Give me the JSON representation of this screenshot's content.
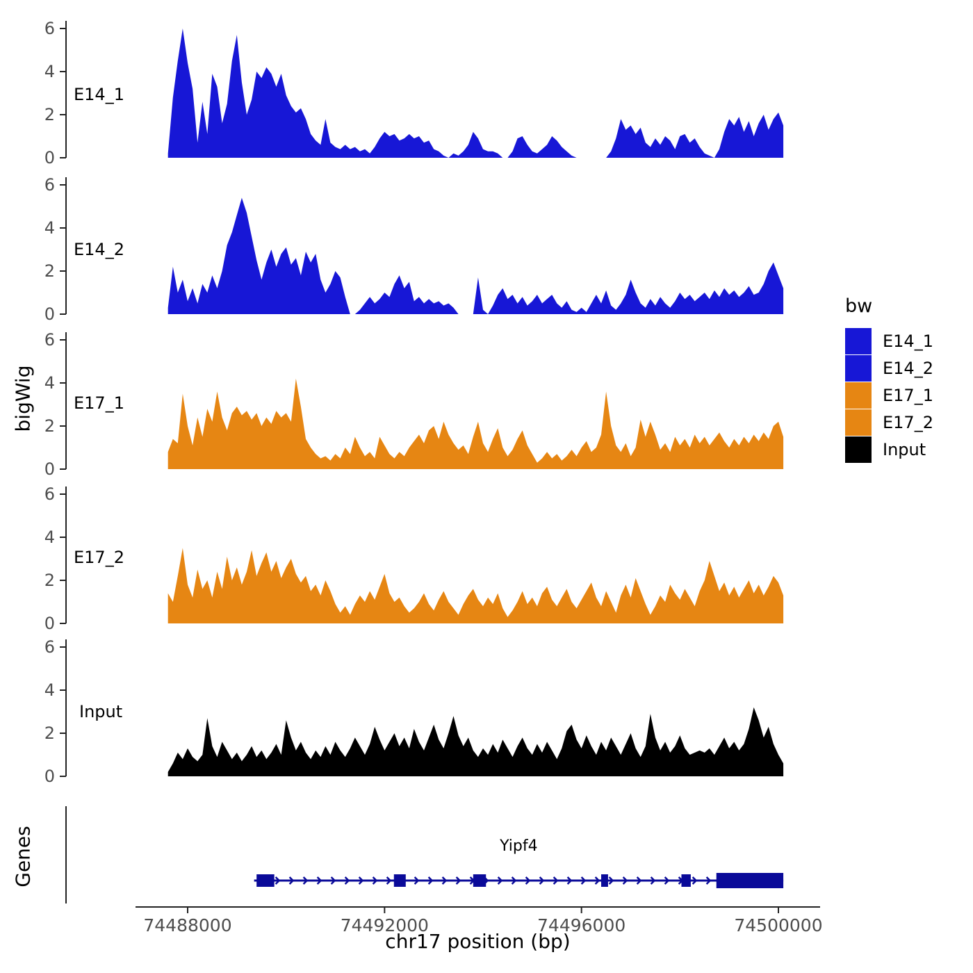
{
  "figure": {
    "ylab": "bigWig",
    "genes_lab": "Genes"
  },
  "legend": {
    "title": "bw",
    "items": [
      {
        "label": "E14_1",
        "color": "#1717d6"
      },
      {
        "label": "E14_2",
        "color": "#1717d6"
      },
      {
        "label": "E17_1",
        "color": "#e68613"
      },
      {
        "label": "E17_2",
        "color": "#e68613"
      },
      {
        "label": "Input",
        "color": "#000000"
      }
    ]
  },
  "chart_data": {
    "type": "area",
    "title": "",
    "xlabel": "chr17 position (bp)",
    "ylabel": "bigWig",
    "layout": "faceted-tracks",
    "x_axis": {
      "min": 74487600,
      "max": 74500100,
      "ticks": [
        74488000,
        74492000,
        74496000,
        74500000
      ],
      "tick_labels": [
        "74488000",
        "74492000",
        "74496000",
        "74500000"
      ]
    },
    "y_axis": {
      "min": 0,
      "max": 6,
      "ticks": [
        0,
        2,
        4,
        6
      ]
    },
    "x_start": 74487600,
    "x_step": 100,
    "series": [
      {
        "name": "E14_1",
        "color": "#1717d6",
        "values": [
          0.2,
          2.8,
          4.5,
          6.0,
          4.4,
          3.2,
          0.7,
          2.6,
          1.1,
          3.9,
          3.3,
          1.6,
          2.5,
          4.5,
          5.7,
          3.5,
          2.0,
          2.7,
          4.0,
          3.7,
          4.2,
          3.9,
          3.3,
          3.9,
          2.9,
          2.4,
          2.1,
          2.3,
          1.8,
          1.1,
          0.8,
          0.6,
          1.8,
          0.7,
          0.5,
          0.4,
          0.6,
          0.4,
          0.5,
          0.3,
          0.4,
          0.2,
          0.5,
          0.9,
          1.2,
          1.0,
          1.1,
          0.8,
          0.9,
          1.1,
          0.9,
          1.0,
          0.7,
          0.8,
          0.4,
          0.3,
          0.1,
          0.0,
          0.2,
          0.1,
          0.3,
          0.6,
          1.2,
          0.9,
          0.4,
          0.3,
          0.3,
          0.2,
          0.0,
          0.0,
          0.3,
          0.9,
          1.0,
          0.6,
          0.3,
          0.2,
          0.4,
          0.6,
          1.0,
          0.8,
          0.5,
          0.3,
          0.1,
          0.0,
          0.0,
          0.0,
          0.0,
          0.0,
          0.0,
          0.0,
          0.3,
          0.9,
          1.8,
          1.3,
          1.5,
          1.1,
          1.4,
          0.7,
          0.5,
          0.9,
          0.6,
          1.0,
          0.8,
          0.4,
          1.0,
          1.1,
          0.7,
          0.9,
          0.5,
          0.2,
          0.1,
          0.0,
          0.4,
          1.2,
          1.8,
          1.5,
          1.9,
          1.2,
          1.7,
          1.0,
          1.6,
          2.0,
          1.3,
          1.8,
          2.1,
          1.5
        ]
      },
      {
        "name": "E14_2",
        "color": "#1717d6",
        "values": [
          0.3,
          2.2,
          1.0,
          1.6,
          0.6,
          1.2,
          0.5,
          1.4,
          1.0,
          1.8,
          1.2,
          2.0,
          3.2,
          3.8,
          4.6,
          5.4,
          4.7,
          3.6,
          2.5,
          1.6,
          2.4,
          3.0,
          2.2,
          2.8,
          3.1,
          2.3,
          2.6,
          1.8,
          2.9,
          2.4,
          2.8,
          1.6,
          1.0,
          1.4,
          2.0,
          1.7,
          0.8,
          0.0,
          0.0,
          0.2,
          0.5,
          0.8,
          0.5,
          0.7,
          1.0,
          0.8,
          1.4,
          1.8,
          1.2,
          1.5,
          0.6,
          0.8,
          0.5,
          0.7,
          0.5,
          0.6,
          0.4,
          0.5,
          0.3,
          0.0,
          0.0,
          0.0,
          0.0,
          1.7,
          0.2,
          0.0,
          0.4,
          0.9,
          1.2,
          0.7,
          0.9,
          0.5,
          0.8,
          0.4,
          0.6,
          0.9,
          0.5,
          0.7,
          0.9,
          0.5,
          0.3,
          0.6,
          0.2,
          0.1,
          0.3,
          0.1,
          0.5,
          0.9,
          0.5,
          1.1,
          0.4,
          0.2,
          0.5,
          0.9,
          1.6,
          1.0,
          0.5,
          0.3,
          0.7,
          0.4,
          0.8,
          0.5,
          0.3,
          0.6,
          1.0,
          0.7,
          0.9,
          0.6,
          0.8,
          1.0,
          0.7,
          1.1,
          0.8,
          1.2,
          0.9,
          1.1,
          0.8,
          1.0,
          1.3,
          0.9,
          1.0,
          1.4,
          2.0,
          2.4,
          1.8,
          1.2
        ]
      },
      {
        "name": "E17_1",
        "color": "#e68613",
        "values": [
          0.8,
          1.4,
          1.2,
          3.5,
          2.0,
          1.1,
          2.4,
          1.5,
          2.8,
          2.2,
          3.6,
          2.4,
          1.8,
          2.6,
          2.9,
          2.5,
          2.7,
          2.3,
          2.6,
          2.0,
          2.4,
          2.1,
          2.7,
          2.4,
          2.6,
          2.2,
          4.2,
          2.9,
          1.4,
          1.0,
          0.7,
          0.5,
          0.6,
          0.4,
          0.7,
          0.5,
          1.0,
          0.7,
          1.5,
          1.0,
          0.6,
          0.8,
          0.5,
          1.5,
          1.1,
          0.7,
          0.5,
          0.8,
          0.6,
          1.0,
          1.3,
          1.6,
          1.2,
          1.8,
          2.0,
          1.4,
          2.2,
          1.6,
          1.2,
          0.9,
          1.1,
          0.7,
          1.5,
          2.2,
          1.2,
          0.8,
          1.4,
          1.9,
          1.0,
          0.6,
          0.9,
          1.4,
          1.8,
          1.1,
          0.7,
          0.3,
          0.5,
          0.8,
          0.5,
          0.7,
          0.4,
          0.6,
          0.9,
          0.6,
          1.0,
          1.3,
          0.8,
          1.0,
          1.6,
          3.6,
          2.0,
          1.1,
          0.8,
          1.2,
          0.6,
          1.0,
          2.3,
          1.5,
          2.2,
          1.6,
          0.9,
          1.2,
          0.8,
          1.5,
          1.1,
          1.4,
          1.0,
          1.6,
          1.2,
          1.5,
          1.1,
          1.4,
          1.7,
          1.3,
          1.0,
          1.4,
          1.1,
          1.5,
          1.2,
          1.6,
          1.3,
          1.7,
          1.4,
          2.0,
          2.2,
          1.5
        ]
      },
      {
        "name": "E17_2",
        "color": "#e68613",
        "values": [
          1.4,
          1.0,
          2.2,
          3.5,
          1.8,
          1.2,
          2.5,
          1.6,
          2.0,
          1.2,
          2.4,
          1.6,
          3.1,
          2.0,
          2.6,
          1.8,
          2.4,
          3.4,
          2.2,
          2.8,
          3.3,
          2.4,
          2.9,
          2.1,
          2.6,
          3.0,
          2.3,
          1.9,
          2.2,
          1.5,
          1.8,
          1.3,
          2.0,
          1.5,
          0.9,
          0.5,
          0.8,
          0.4,
          0.9,
          1.3,
          1.0,
          1.5,
          1.1,
          1.7,
          2.3,
          1.4,
          1.0,
          1.2,
          0.8,
          0.5,
          0.7,
          1.0,
          1.4,
          0.9,
          0.6,
          1.1,
          1.5,
          1.0,
          0.7,
          0.4,
          0.9,
          1.3,
          1.6,
          1.1,
          0.8,
          1.2,
          0.9,
          1.4,
          0.7,
          0.3,
          0.6,
          1.0,
          1.5,
          0.9,
          1.2,
          0.8,
          1.4,
          1.7,
          1.1,
          0.8,
          1.2,
          1.6,
          1.0,
          0.7,
          1.1,
          1.5,
          1.9,
          1.2,
          0.8,
          1.5,
          1.0,
          0.5,
          1.3,
          1.8,
          1.2,
          2.1,
          1.5,
          0.9,
          0.4,
          0.8,
          1.3,
          1.0,
          1.8,
          1.4,
          1.1,
          1.6,
          1.2,
          0.8,
          1.5,
          2.0,
          2.9,
          2.2,
          1.5,
          1.9,
          1.3,
          1.7,
          1.2,
          1.6,
          2.0,
          1.4,
          1.8,
          1.3,
          1.7,
          2.2,
          1.9,
          1.3
        ]
      },
      {
        "name": "Input",
        "color": "#000000",
        "values": [
          0.2,
          0.6,
          1.1,
          0.8,
          1.3,
          0.9,
          0.7,
          1.0,
          2.7,
          1.4,
          0.9,
          1.6,
          1.2,
          0.8,
          1.1,
          0.7,
          1.0,
          1.4,
          0.9,
          1.2,
          0.8,
          1.1,
          1.5,
          1.0,
          2.6,
          1.8,
          1.2,
          1.6,
          1.1,
          0.8,
          1.2,
          0.9,
          1.4,
          1.0,
          1.6,
          1.2,
          0.9,
          1.3,
          1.8,
          1.4,
          1.0,
          1.5,
          2.3,
          1.7,
          1.2,
          1.6,
          2.0,
          1.4,
          1.8,
          1.3,
          2.2,
          1.6,
          1.2,
          1.8,
          2.4,
          1.7,
          1.3,
          2.0,
          2.8,
          1.9,
          1.4,
          1.8,
          1.2,
          0.9,
          1.3,
          1.0,
          1.5,
          1.1,
          1.7,
          1.3,
          0.9,
          1.4,
          1.8,
          1.3,
          1.0,
          1.5,
          1.1,
          1.6,
          1.2,
          0.8,
          1.3,
          2.1,
          2.4,
          1.7,
          1.3,
          1.9,
          1.4,
          1.0,
          1.6,
          1.2,
          1.8,
          1.4,
          1.0,
          1.5,
          2.0,
          1.3,
          0.9,
          1.4,
          2.9,
          1.8,
          1.2,
          1.6,
          1.1,
          1.4,
          1.9,
          1.3,
          1.0,
          1.1,
          1.2,
          1.1,
          1.3,
          1.0,
          1.4,
          1.8,
          1.3,
          1.6,
          1.2,
          1.5,
          2.2,
          3.2,
          2.6,
          1.8,
          2.3,
          1.5,
          1.0,
          0.6
        ]
      }
    ],
    "gene_track": {
      "label": "Genes",
      "gene": {
        "name": "Yipf4",
        "strand": "+",
        "start": 74489350,
        "end": 74500100,
        "color": "#0a0a99",
        "exons": [
          [
            74489400,
            74489760
          ],
          [
            74492190,
            74492430
          ],
          [
            74493800,
            74494060
          ],
          [
            74496400,
            74496540
          ],
          [
            74498030,
            74498220
          ],
          [
            74498740,
            74500100
          ]
        ]
      }
    }
  }
}
